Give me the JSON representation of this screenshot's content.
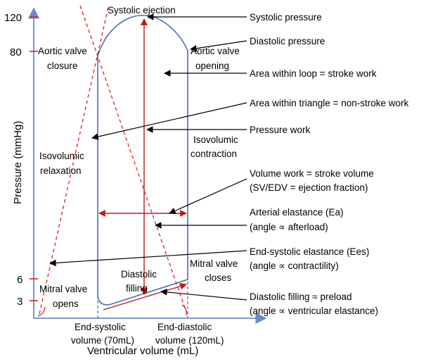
{
  "axes": {
    "y_label": "Pressure (mmHg)",
    "x_label": "Ventricular volume (mL)",
    "y_ticks": [
      "120",
      "80",
      "6",
      "3"
    ]
  },
  "loop_labels": {
    "systolic_ejection": "Systolic ejection",
    "aortic_valve_closure": [
      "Aortic valve",
      "closure"
    ],
    "aortic_valve_opening": [
      "Aortic valve",
      "opening"
    ],
    "isovolumic_relaxation": [
      "Isovolumic",
      "relaxation"
    ],
    "isovolumic_contraction": [
      "Isovolumic",
      "contraction"
    ],
    "diastolic_filling": [
      "Diastolic",
      "filling"
    ],
    "mitral_valve_opens": [
      "Mitral valve",
      "opens"
    ],
    "mitral_valve_closes": [
      "Mitral valve",
      "closes"
    ],
    "end_systolic_volume": [
      "End-systolic",
      "volume (70mL)"
    ],
    "end_diastolic_volume": [
      "End-diastolic",
      "volume (120mL)"
    ]
  },
  "annotations": [
    [
      "Systolic pressure"
    ],
    [
      "Diastolic pressure"
    ],
    [
      "Area within loop = stroke work"
    ],
    [
      "Area within triangle = non-stroke work"
    ],
    [
      "Pressure work"
    ],
    [
      "Volume work = stroke volume",
      "(SV/EDV = ejection fraction)"
    ],
    [
      "Arterial elastance (Ea)",
      "(angle ∝ afterload)"
    ],
    [
      "End-systolic elastance (Ees)",
      "(angle ∝ contractility)"
    ],
    [
      "Diastolic filling ≈ preload",
      "(angle ∝ ventricular elastance)"
    ]
  ],
  "colors": {
    "loop": "#4a6fa8",
    "axis": "#6a8cc4",
    "elastance_lines": "#e03030",
    "work_arrows": "#c01818",
    "text": "#000000"
  }
}
